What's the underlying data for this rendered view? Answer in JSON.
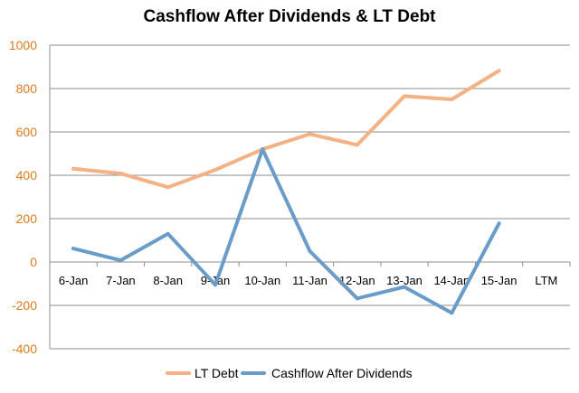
{
  "chart_data": {
    "type": "line",
    "title": "Cashflow After Dividends & LT Debt",
    "categories": [
      "6-Jan",
      "7-Jan",
      "8-Jan",
      "9-Jan",
      "10-Jan",
      "11-Jan",
      "12-Jan",
      "13-Jan",
      "14-Jan",
      "15-Jan",
      "LTM"
    ],
    "series": [
      {
        "name": "LT Debt",
        "color": "#f4b183",
        "values": [
          430,
          408,
          345,
          425,
          520,
          590,
          540,
          765,
          750,
          882,
          null
        ]
      },
      {
        "name": "Cashflow After Dividends",
        "color": "#6a9cc9",
        "values": [
          62,
          8,
          130,
          -105,
          520,
          50,
          -168,
          -115,
          -235,
          178,
          null
        ]
      }
    ],
    "ylim": [
      -400,
      1000
    ],
    "yticks": [
      1000,
      800,
      600,
      400,
      200,
      0,
      -200,
      -400
    ],
    "ytick_color": "#e07a1f",
    "grid": true,
    "legend_position": "bottom"
  }
}
